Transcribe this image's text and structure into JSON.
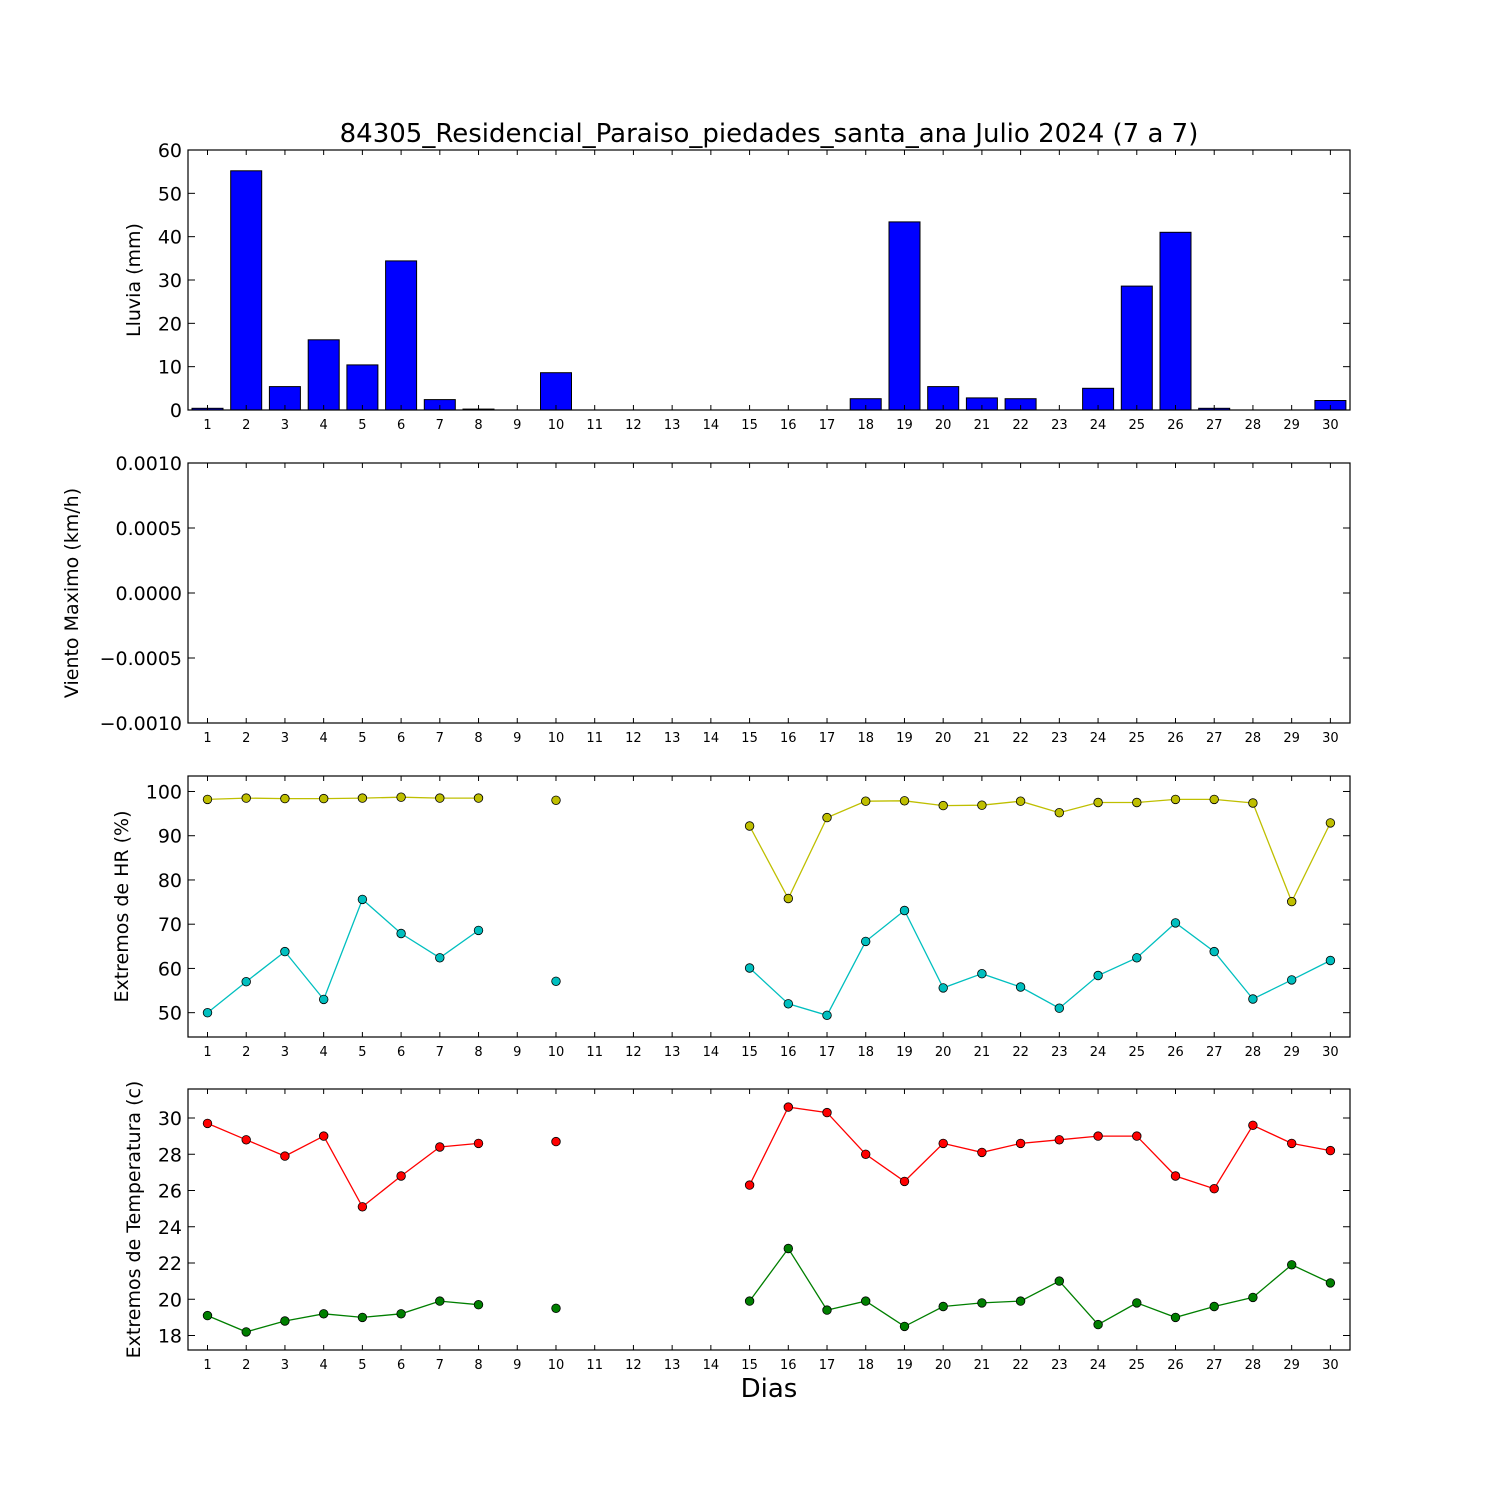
{
  "title": "84305_Residencial_Paraiso_piedades_santa_ana Julio 2024  (7 a 7)",
  "xlabel": "Dias",
  "chart_data": [
    {
      "id": "rain",
      "type": "bar",
      "ylabel": "Lluvia (mm)",
      "ylim": [
        0,
        60
      ],
      "yticks": [
        0,
        10,
        20,
        30,
        40,
        50,
        60
      ],
      "yticklabels": [
        "0",
        "10",
        "20",
        "30",
        "40",
        "50",
        "60"
      ],
      "categories": [
        "1",
        "2",
        "3",
        "4",
        "5",
        "6",
        "7",
        "8",
        "9",
        "10",
        "11",
        "12",
        "13",
        "14",
        "15",
        "16",
        "17",
        "18",
        "19",
        "20",
        "21",
        "22",
        "23",
        "24",
        "25",
        "26",
        "27",
        "28",
        "29",
        "30"
      ],
      "values": [
        0.4,
        55.2,
        5.4,
        16.2,
        10.4,
        34.4,
        2.4,
        0.2,
        0,
        8.6,
        0,
        0,
        0,
        0,
        0,
        0,
        0,
        2.6,
        43.4,
        5.4,
        2.8,
        2.6,
        0,
        5.0,
        28.6,
        41.0,
        0.4,
        0,
        0,
        2.2
      ],
      "color": "#0000ff"
    },
    {
      "id": "wind",
      "type": "line",
      "ylabel": "Viento Maximo (km/h)",
      "ylim": [
        -0.001,
        0.001
      ],
      "yticks": [
        -0.001,
        -0.0005,
        0,
        0.0005,
        0.001
      ],
      "yticklabels": [
        "−0.0010",
        "−0.0005",
        "0.0000",
        "0.0005",
        "0.0010"
      ],
      "categories": [
        "1",
        "2",
        "3",
        "4",
        "5",
        "6",
        "7",
        "8",
        "9",
        "10",
        "11",
        "12",
        "13",
        "14",
        "15",
        "16",
        "17",
        "18",
        "19",
        "20",
        "21",
        "22",
        "23",
        "24",
        "25",
        "26",
        "27",
        "28",
        "29",
        "30"
      ],
      "series": []
    },
    {
      "id": "humidity",
      "type": "line",
      "ylabel": "Extremos de HR (%)",
      "ylim": [
        44.5,
        103.5
      ],
      "yticks": [
        50,
        60,
        70,
        80,
        90,
        100
      ],
      "yticklabels": [
        "50",
        "60",
        "70",
        "80",
        "90",
        "100"
      ],
      "categories": [
        "1",
        "2",
        "3",
        "4",
        "5",
        "6",
        "7",
        "8",
        "9",
        "10",
        "11",
        "12",
        "13",
        "14",
        "15",
        "16",
        "17",
        "18",
        "19",
        "20",
        "21",
        "22",
        "23",
        "24",
        "25",
        "26",
        "27",
        "28",
        "29",
        "30"
      ],
      "series": [
        {
          "color": "#bfbf00",
          "values": [
            98.2,
            98.5,
            98.4,
            98.4,
            98.5,
            98.7,
            98.5,
            98.5,
            null,
            98.0,
            null,
            null,
            null,
            null,
            92.2,
            75.8,
            94.1,
            97.8,
            97.9,
            96.8,
            96.9,
            97.8,
            95.2,
            97.5,
            97.5,
            98.2,
            98.2,
            97.4,
            75.1,
            92.9
          ]
        },
        {
          "color": "#00bfbf",
          "values": [
            50.0,
            57.0,
            63.8,
            53.0,
            75.6,
            67.9,
            62.4,
            68.6,
            null,
            57.1,
            null,
            null,
            null,
            null,
            60.1,
            52.0,
            49.4,
            66.1,
            73.1,
            55.6,
            58.8,
            55.8,
            51.0,
            58.4,
            62.4,
            70.3,
            63.8,
            53.1,
            57.4,
            61.8
          ]
        }
      ]
    },
    {
      "id": "temperature",
      "type": "line",
      "ylabel": "Extremos de Temperatura (c)",
      "ylim": [
        17.2,
        31.6
      ],
      "yticks": [
        18,
        20,
        22,
        24,
        26,
        28,
        30
      ],
      "yticklabels": [
        "18",
        "20",
        "22",
        "24",
        "26",
        "28",
        "30"
      ],
      "categories": [
        "1",
        "2",
        "3",
        "4",
        "5",
        "6",
        "7",
        "8",
        "9",
        "10",
        "11",
        "12",
        "13",
        "14",
        "15",
        "16",
        "17",
        "18",
        "19",
        "20",
        "21",
        "22",
        "23",
        "24",
        "25",
        "26",
        "27",
        "28",
        "29",
        "30"
      ],
      "series": [
        {
          "color": "#ff0000",
          "values": [
            29.7,
            28.8,
            27.9,
            29.0,
            25.1,
            26.8,
            28.4,
            28.6,
            null,
            28.7,
            null,
            null,
            null,
            null,
            26.3,
            30.6,
            30.3,
            28.0,
            26.5,
            28.6,
            28.1,
            28.6,
            28.8,
            29.0,
            29.0,
            26.8,
            26.1,
            29.6,
            28.6,
            28.2
          ]
        },
        {
          "color": "#007f00",
          "values": [
            19.1,
            18.2,
            18.8,
            19.2,
            19.0,
            19.2,
            19.9,
            19.7,
            null,
            19.5,
            null,
            null,
            null,
            null,
            19.9,
            22.8,
            19.4,
            19.9,
            18.5,
            19.6,
            19.8,
            19.9,
            21.0,
            18.6,
            19.8,
            19.0,
            19.6,
            20.1,
            21.9,
            20.9
          ]
        }
      ]
    }
  ]
}
